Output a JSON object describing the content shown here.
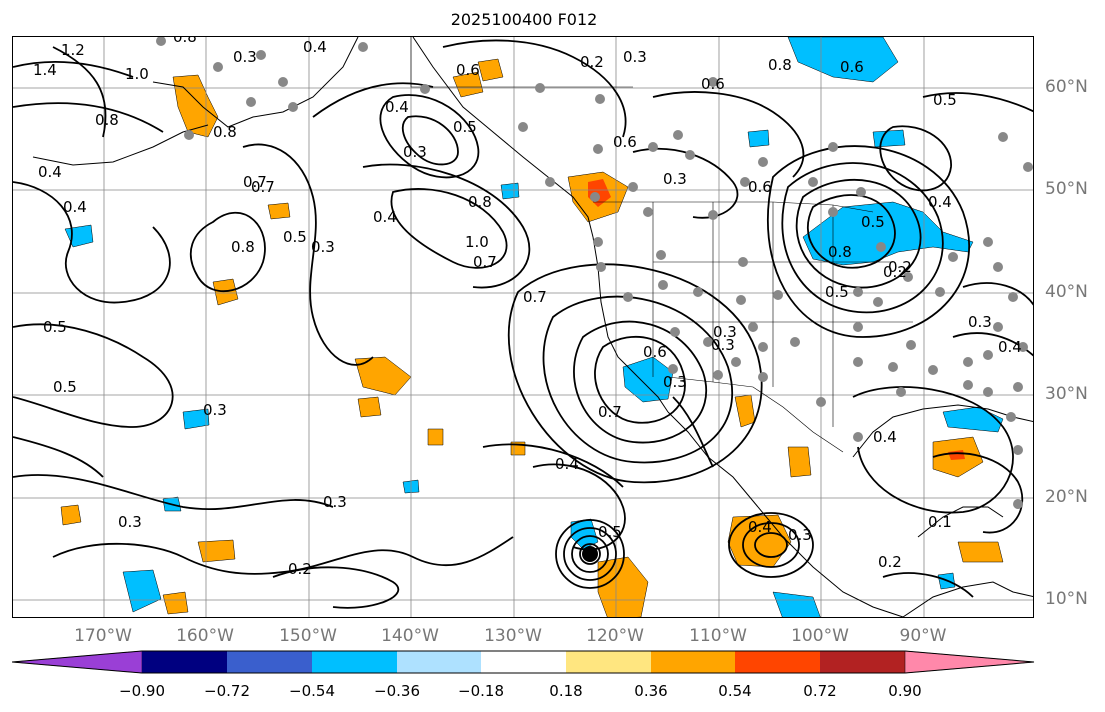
{
  "title": "2025100400 F012",
  "lon_labels": [
    "170°W",
    "160°W",
    "150°W",
    "140°W",
    "130°W",
    "120°W",
    "110°W",
    "100°W",
    "90°W"
  ],
  "lat_labels": [
    "60°N",
    "50°N",
    "40°N",
    "30°N",
    "20°N",
    "10°N"
  ],
  "colorbar": {
    "colors": [
      "#9a3fd6",
      "#000080",
      "#3a5fcd",
      "#00bfff",
      "#aee1ff",
      "#ffffff",
      "#ffe680",
      "#ffa500",
      "#ff4500",
      "#b22222",
      "#ff88aa"
    ],
    "ticks": [
      "−0.90",
      "−0.72",
      "−0.54",
      "−0.36",
      "−0.18",
      "0.18",
      "0.36",
      "0.54",
      "0.72",
      "0.90"
    ]
  },
  "contour_labels": [
    "1.2",
    "1.4",
    "1.0",
    "0.8",
    "0.3",
    "0.4",
    "0.2",
    "0.3",
    "0.6",
    "0.8",
    "0.6",
    "0.5",
    "0.4",
    "0.3",
    "0.7",
    "0.8",
    "0.8",
    "0.4",
    "0.3",
    "0.5",
    "0.4",
    "0.3",
    "0.6",
    "0.5",
    "0.8",
    "0.7",
    "0.6",
    "1.0",
    "0.8",
    "0.5",
    "0.5",
    "0.4",
    "0.8",
    "0.3",
    "0.7",
    "0.7",
    "0.7",
    "0.6",
    "0.3",
    "0.2",
    "0.4",
    "0.5",
    "0.5",
    "0.3",
    "0.6",
    "0.3",
    "0.4",
    "0.4",
    "0.3",
    "0.3",
    "0.5",
    "0.4",
    "0.3",
    "0.2",
    "0.2",
    "0.3",
    "0.4",
    "0.2",
    "0.1"
  ],
  "colors": {
    "land_outline": "#000000",
    "grid": "#888888",
    "contour": "#000000",
    "station": "#888888"
  }
}
